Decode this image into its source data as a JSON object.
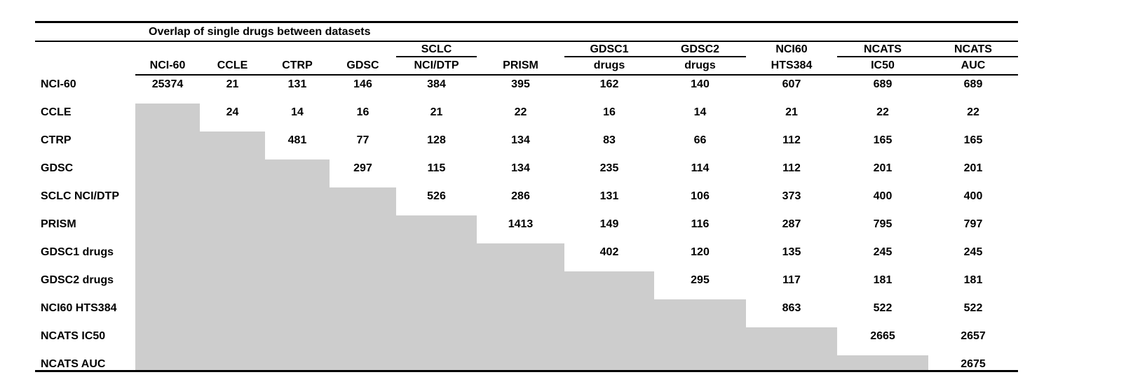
{
  "title": "Overlap of single drugs between datasets",
  "colors": {
    "shade": "#cdcdcd",
    "rule": "#000000",
    "text": "#000000"
  },
  "table": {
    "group_headers": [
      {
        "label": "SCLC",
        "col": 5,
        "underline": true
      },
      {
        "label": "GDSC1",
        "col": 7,
        "underline": true
      },
      {
        "label": "GDSC2",
        "col": 8,
        "underline": true
      },
      {
        "label": "NCI60",
        "col": 9,
        "underline": false
      },
      {
        "label": "NCATS",
        "col": 10,
        "underline": true
      },
      {
        "label": "NCATS",
        "col": 11,
        "underline": true
      }
    ],
    "column_headers": [
      "NCI-60",
      "CCLE",
      "CTRP",
      "GDSC",
      "NCI/DTP",
      "PRISM",
      "drugs",
      "drugs",
      "HTS384",
      "IC50",
      "AUC"
    ],
    "rows": [
      {
        "label": "NCI-60",
        "values": [
          "25374",
          "21",
          "131",
          "146",
          "384",
          "395",
          "162",
          "140",
          "607",
          "689",
          "689"
        ]
      },
      {
        "label": "CCLE",
        "values": [
          "",
          "24",
          "14",
          "16",
          "21",
          "22",
          "16",
          "14",
          "21",
          "22",
          "22"
        ]
      },
      {
        "label": "CTRP",
        "values": [
          "",
          "",
          "481",
          "77",
          "128",
          "134",
          "83",
          "66",
          "112",
          "165",
          "165"
        ]
      },
      {
        "label": "GDSC",
        "values": [
          "",
          "",
          "",
          "297",
          "115",
          "134",
          "235",
          "114",
          "112",
          "201",
          "201"
        ]
      },
      {
        "label": "SCLC NCI/DTP",
        "values": [
          "",
          "",
          "",
          "",
          "526",
          "286",
          "131",
          "106",
          "373",
          "400",
          "400"
        ]
      },
      {
        "label": "PRISM",
        "values": [
          "",
          "",
          "",
          "",
          "",
          "1413",
          "149",
          "116",
          "287",
          "795",
          "797"
        ]
      },
      {
        "label": "GDSC1 drugs",
        "values": [
          "",
          "",
          "",
          "",
          "",
          "",
          "402",
          "120",
          "135",
          "245",
          "245"
        ]
      },
      {
        "label": "GDSC2 drugs",
        "values": [
          "",
          "",
          "",
          "",
          "",
          "",
          "",
          "295",
          "117",
          "181",
          "181"
        ]
      },
      {
        "label": "NCI60 HTS384",
        "values": [
          "",
          "",
          "",
          "",
          "",
          "",
          "",
          "",
          "863",
          "522",
          "522"
        ]
      },
      {
        "label": "NCATS IC50",
        "values": [
          "",
          "",
          "",
          "",
          "",
          "",
          "",
          "",
          "",
          "2665",
          "2657"
        ]
      },
      {
        "label": "NCATS AUC",
        "values": [
          "",
          "",
          "",
          "",
          "",
          "",
          "",
          "",
          "",
          "",
          "2675"
        ]
      }
    ]
  }
}
